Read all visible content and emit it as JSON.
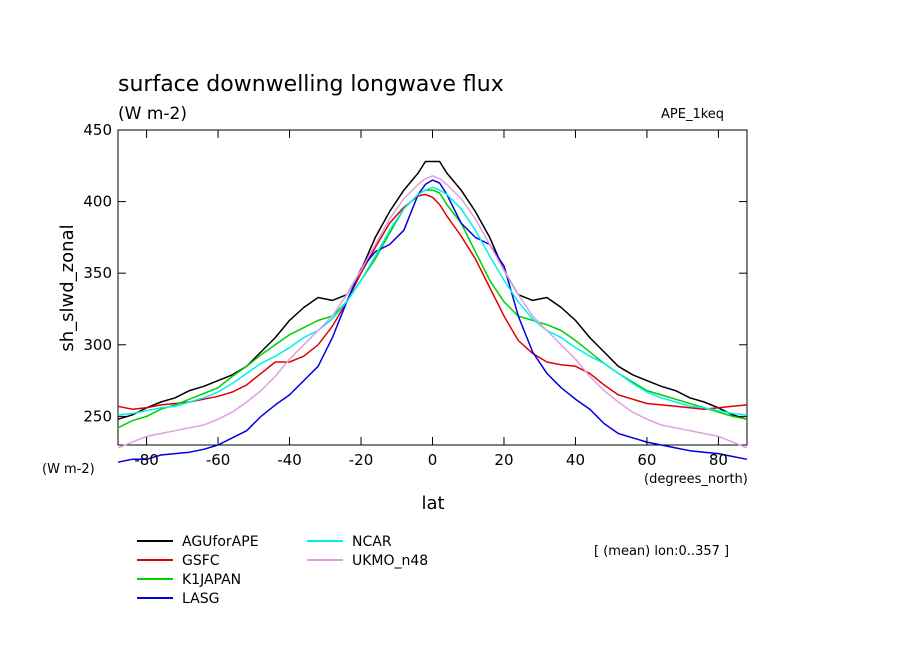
{
  "chart_data": {
    "type": "line",
    "title": "surface downwelling longwave flux",
    "units": "(W m-2)",
    "case_label": "APE_1keq",
    "xlabel": "lat",
    "ylabel": "sh_slwd_zonal",
    "x_units": "(degrees_north)",
    "y_units": "(W m-2)",
    "xlim": [
      -88,
      88
    ],
    "ylim": [
      230,
      450
    ],
    "xticks": [
      -80,
      -60,
      -40,
      -20,
      0,
      20,
      40,
      60,
      80
    ],
    "yticks": [
      250,
      300,
      350,
      400,
      450
    ],
    "mean_note": "[ (mean) lon:0..357 ]",
    "x": [
      -88,
      -84,
      -80,
      -76,
      -72,
      -68,
      -64,
      -60,
      -56,
      -52,
      -48,
      -44,
      -40,
      -36,
      -32,
      -28,
      -24,
      -20,
      -16,
      -12,
      -8,
      -4,
      -2,
      0,
      2,
      4,
      8,
      12,
      16,
      20,
      24,
      28,
      32,
      36,
      40,
      44,
      48,
      52,
      56,
      60,
      64,
      68,
      72,
      76,
      80,
      84,
      88
    ],
    "series": [
      {
        "name": "AGUforAPE",
        "color": "#000000",
        "values": [
          248,
          251,
          256,
          260,
          263,
          268,
          271,
          275,
          279,
          285,
          295,
          305,
          317,
          326,
          333,
          331,
          335,
          352,
          375,
          393,
          408,
          420,
          428,
          428,
          428,
          420,
          408,
          393,
          375,
          352,
          335,
          331,
          333,
          326,
          317,
          305,
          295,
          285,
          279,
          275,
          271,
          268,
          263,
          260,
          256,
          251,
          248
        ]
      },
      {
        "name": "GSFC",
        "color": "#e00000",
        "values": [
          257,
          255,
          256,
          258,
          259,
          260,
          262,
          264,
          267,
          272,
          280,
          288,
          288,
          292,
          300,
          313,
          330,
          350,
          368,
          385,
          396,
          404,
          405,
          403,
          398,
          390,
          376,
          360,
          340,
          320,
          303,
          294,
          288,
          286,
          285,
          280,
          272,
          265,
          262,
          259,
          258,
          257,
          256,
          255,
          256,
          257,
          258
        ]
      },
      {
        "name": "K1JAPAN",
        "color": "#00d000",
        "values": [
          242,
          247,
          250,
          255,
          258,
          262,
          266,
          270,
          278,
          285,
          293,
          300,
          307,
          312,
          317,
          320,
          330,
          345,
          360,
          378,
          395,
          405,
          408,
          408,
          406,
          398,
          385,
          365,
          345,
          330,
          320,
          317,
          314,
          310,
          303,
          295,
          287,
          280,
          274,
          268,
          265,
          262,
          259,
          256,
          253,
          250,
          248
        ]
      },
      {
        "name": "LASG",
        "color": "#0000e0",
        "values": [
          218,
          220,
          220,
          223,
          224,
          225,
          227,
          230,
          235,
          240,
          250,
          258,
          265,
          275,
          285,
          305,
          330,
          353,
          365,
          370,
          380,
          405,
          412,
          415,
          413,
          405,
          385,
          375,
          370,
          355,
          320,
          295,
          280,
          270,
          262,
          255,
          245,
          238,
          235,
          232,
          230,
          228,
          226,
          225,
          224,
          222,
          220
        ]
      },
      {
        "name": "NCAR",
        "color": "#00f0f0",
        "values": [
          251,
          252,
          254,
          256,
          257,
          260,
          263,
          267,
          273,
          280,
          287,
          292,
          298,
          305,
          310,
          318,
          330,
          345,
          362,
          380,
          395,
          405,
          408,
          410,
          408,
          405,
          395,
          380,
          362,
          345,
          330,
          318,
          310,
          305,
          298,
          292,
          287,
          280,
          273,
          267,
          263,
          260,
          257,
          256,
          254,
          252,
          251
        ]
      },
      {
        "name": "UKMO_n48",
        "color": "#e0a0e0",
        "values": [
          228,
          232,
          236,
          238,
          240,
          242,
          244,
          248,
          253,
          260,
          268,
          278,
          290,
          300,
          310,
          320,
          335,
          352,
          370,
          388,
          402,
          412,
          416,
          418,
          416,
          412,
          402,
          388,
          370,
          352,
          335,
          320,
          310,
          300,
          290,
          278,
          268,
          260,
          253,
          248,
          244,
          242,
          240,
          238,
          236,
          232,
          228
        ]
      }
    ],
    "grid": false,
    "legend_position": "bottom-left"
  }
}
